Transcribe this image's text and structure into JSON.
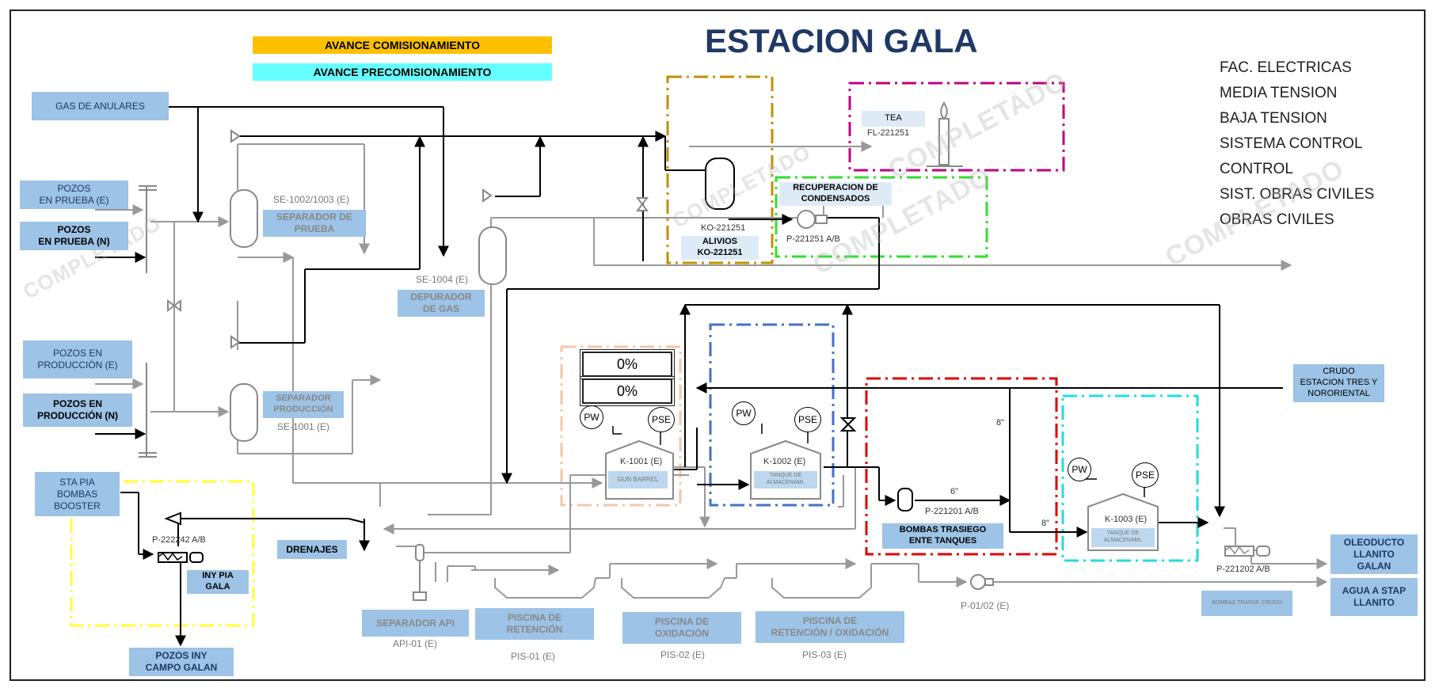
{
  "title": "ESTACION GALA",
  "progress": {
    "commissioning": {
      "label": "AVANCE COMISIONAMIENTO",
      "color": "#ffc000"
    },
    "precommissioning": {
      "label": "AVANCE PRECOMISIONAMIENTO",
      "color": "#66ffff"
    }
  },
  "legend": [
    "FAC. ELECTRICAS",
    "MEDIA TENSION",
    "BAJA TENSION",
    "SISTEMA CONTROL",
    "CONTROL",
    "SIST. OBRAS CIVILES",
    "OBRAS CIVILES"
  ],
  "watermark": "COMPLETADO",
  "percent": {
    "top": "0%",
    "bottom": "0%"
  },
  "inputs": {
    "gas_anulares": "GAS DE ANULARES",
    "pozos_prueba_e": "POZOS\nEN PRUEBA (E)",
    "pozos_prueba_n": "POZOS\nEN PRUEBA (N)",
    "pozos_prod_e": "POZOS EN\nPRODUCCIÓN (E)",
    "pozos_prod_n": "POZOS EN\nPRODUCCIÓN (N)",
    "sta_pia": "STA PIA\nBOMBAS\nBOOSTER",
    "crudo": "CRUDO\nESTACION TRES Y\nNORORIENTAL"
  },
  "equipment": {
    "se_1002_tag": "SE-1002/1003 (E)",
    "se_1002_name": "SEPARADOR DE\nPRUEBA",
    "se_1001_name": "SEPARADOR\nPRODUCCIÓN",
    "se_1001_tag": "SE-1001 (E)",
    "se_1004_tag": "SE-1004 (E)",
    "se_1004_name": "DEPURADOR\nDE GAS",
    "ko_tag": "KO-221251",
    "ko_name": "ALIVIOS\nKO-221251",
    "tea_name": "TEA",
    "tea_tag": "FL-221251",
    "recup_name": "RECUPERACION DE\nCONDENSADOS",
    "recup_tag": "P-221251 A/B",
    "k1001_tag": "K-1001 (E)",
    "k1001_name": "GUN BARREL",
    "k1002_tag": "K-1002 (E)",
    "k1002_name": "TANQUE DE\nALMACENAMI.",
    "k1003_tag": "K-1003 (E)",
    "k1003_name": "TANQUE DE\nALMACENAMI.",
    "p221201_tag": "P-221201 A/B",
    "bombas_trasiego": "BOMBAS TRASIEGO\nENTE TANQUES",
    "p222242_tag": "P-222242 A/B",
    "iny_pia": "INY PIA\nGALA",
    "pozos_iny": "POZOS INY\nCAMPO GALAN",
    "drenajes": "DRENAJES",
    "api_name": "SEPARADOR API",
    "api_tag": "API-01 (E)",
    "pis01_name": "PISCINA DE\nRETENCIÓN",
    "pis01_tag": "PIS-01 (E)",
    "pis02_name": "PISCINA DE\nOXIDACIÓN",
    "pis02_tag": "PIS-02 (E)",
    "pis03_name": "PISCINA DE\nRETENCIÓN / OXIDACIÓN",
    "pis03_tag": "PIS-03 (E)",
    "p0102_tag": "P-01/02 (E)",
    "p221202_tag": "P-221202 A/B",
    "bombas_transf": "BOMBAS TRANSF. CRUDO",
    "oleoducto": "OLEODUCTO\nLLANITO\nGALAN",
    "agua_stap": "AGUA A STAP\nLLANITO"
  },
  "instruments": {
    "pw": "PW",
    "pse": "PSE"
  },
  "pipe_sizes": {
    "a": "8\"",
    "b": "6\"",
    "c": "8\""
  },
  "zone_colors": {
    "ko": "#bf9000",
    "tea": "#c00080",
    "recup": "#33dd33",
    "k1001": "#f4c7a8",
    "k1002": "#4472c4",
    "trasiego": "#e00000",
    "k1003": "#22dddd",
    "pia": "#ffff33"
  }
}
